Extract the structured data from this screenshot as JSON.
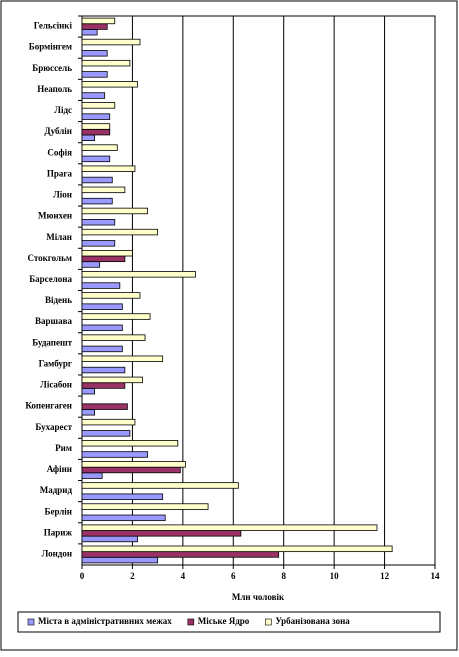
{
  "chart_data": {
    "type": "hbar",
    "categories": [
      "Гельсінкі",
      "Бормінгем",
      "Брюссель",
      "Неаполь",
      "Лідс",
      "Дублін",
      "Софія",
      "Прага",
      "Ліон",
      "Мюнхен",
      "Мілан",
      "Стокгольм",
      "Барселона",
      "Відень",
      "Варшава",
      "Будапешт",
      "Гамбург",
      "Лісабон",
      "Копенгаген",
      "Бухарест",
      "Рим",
      "Афіни",
      "Мадрид",
      "Берлін",
      "Париж",
      "Лондон"
    ],
    "series": [
      {
        "name": "Міста в адміністративних межах",
        "color": "#9999ff",
        "values": [
          0.6,
          1.0,
          1.0,
          0.9,
          1.1,
          0.5,
          1.1,
          1.2,
          1.2,
          1.3,
          1.3,
          0.7,
          1.5,
          1.6,
          1.6,
          1.6,
          1.7,
          0.5,
          0.5,
          1.9,
          2.6,
          0.8,
          3.2,
          3.3,
          2.2,
          3.0
        ]
      },
      {
        "name": "Міське Ядро",
        "color": "#993366",
        "values": [
          1.0,
          null,
          null,
          null,
          null,
          1.1,
          null,
          null,
          null,
          null,
          null,
          1.7,
          null,
          null,
          null,
          null,
          null,
          1.7,
          1.8,
          null,
          null,
          3.9,
          null,
          null,
          6.3,
          7.8
        ]
      },
      {
        "name": "Урбанізована зона",
        "color": "#ffffcc",
        "values": [
          1.3,
          2.3,
          1.9,
          2.2,
          1.3,
          1.1,
          1.4,
          2.1,
          1.7,
          2.6,
          3.0,
          2.0,
          4.5,
          2.3,
          2.7,
          2.5,
          3.2,
          2.4,
          null,
          2.1,
          3.8,
          4.1,
          6.2,
          5.0,
          11.7,
          12.3
        ]
      }
    ],
    "x_label": "Млн чоловік",
    "xlim": [
      0,
      14
    ],
    "xticks": [
      0,
      2,
      4,
      6,
      8,
      10,
      12,
      14
    ],
    "grid": true
  }
}
